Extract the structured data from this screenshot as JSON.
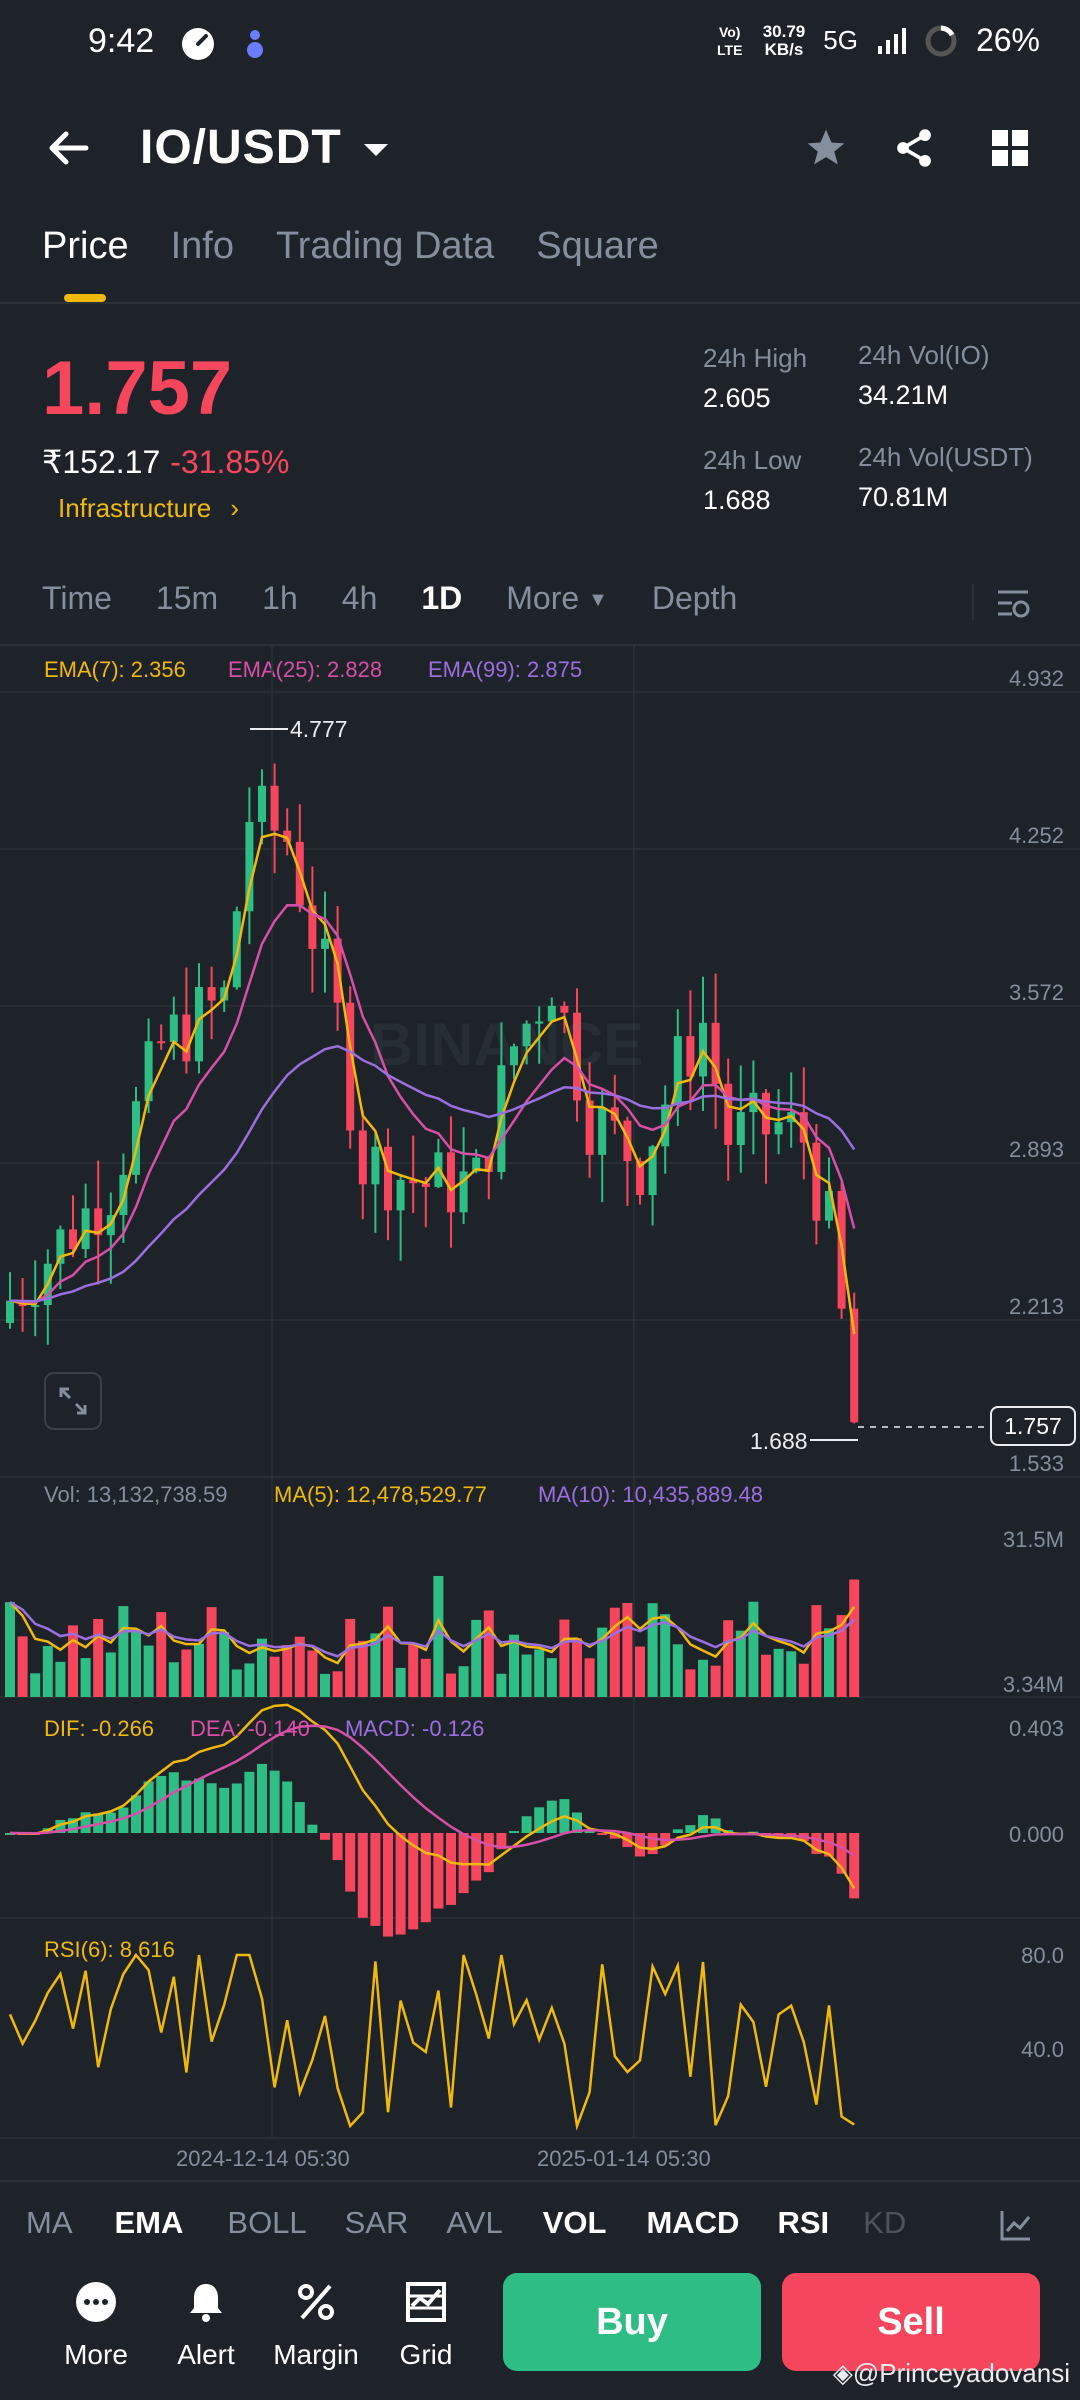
{
  "status_bar": {
    "time": "9:42",
    "network_speed": "30.79",
    "network_unit": "KB/s",
    "signal": "5G",
    "volte": "Vo) LTE",
    "battery": "26%"
  },
  "header": {
    "pair": "IO/USDT"
  },
  "tabs": [
    {
      "label": "Price"
    },
    {
      "label": "Info"
    },
    {
      "label": "Trading Data"
    },
    {
      "label": "Square"
    }
  ],
  "ticker": {
    "last_price": "1.757",
    "inr_price": "₹152.17",
    "change": "-31.85%",
    "tag": "Infrastructure",
    "high_label": "24h High",
    "high": "2.605",
    "low_label": "24h Low",
    "low": "1.688",
    "vol_base_label": "24h Vol(IO)",
    "vol_base": "34.21M",
    "vol_quote_label": "24h Vol(USDT)",
    "vol_quote": "70.81M"
  },
  "timeframes": [
    "Time",
    "15m",
    "1h",
    "4h",
    "1D",
    "More",
    "Depth"
  ],
  "active_timeframe": "1D",
  "main_chart": {
    "ema7": "EMA(7): 2.356",
    "ema25": "EMA(25): 2.828",
    "ema99": "EMA(99): 2.875",
    "y_ticks": [
      "4.932",
      "4.252",
      "3.572",
      "2.893",
      "2.213",
      "1.533"
    ],
    "high_marker": "4.777",
    "low_marker": "1.688",
    "current_price_tag": "1.757",
    "watermark": "BINANCE"
  },
  "volume_chart": {
    "vol": "Vol: 13,132,738.59",
    "ma5": "MA(5): 12,478,529.77",
    "ma10": "MA(10): 10,435,889.48",
    "y_max": "31.5M",
    "y_min": "3.34M"
  },
  "macd_chart": {
    "dif": "DIF: -0.266",
    "dea": "DEA: -0.140",
    "macd": "MACD: -0.126",
    "y_top": "0.403",
    "y_mid": "0.000"
  },
  "rsi_chart": {
    "rsi": "RSI(6): 8.616",
    "y_top": "80.0",
    "y_mid": "40.0"
  },
  "x_axis": [
    "2024-12-14 05:30",
    "2025-01-14 05:30"
  ],
  "indicator_tabs": [
    "MA",
    "EMA",
    "BOLL",
    "SAR",
    "AVL",
    "VOL",
    "MACD",
    "RSI",
    "KD"
  ],
  "actions": [
    {
      "label": "More"
    },
    {
      "label": "Alert"
    },
    {
      "label": "Margin"
    },
    {
      "label": "Grid"
    }
  ],
  "buy_label": "Buy",
  "sell_label": "Sell",
  "watermark_user": "@Princeyadovansi",
  "colors": {
    "up": "#2ebd85",
    "down": "#f6465d",
    "accent": "#f0b90b",
    "bg": "#1e2329",
    "ema25": "#d84fa8",
    "ema99": "#9c6ee0"
  }
}
